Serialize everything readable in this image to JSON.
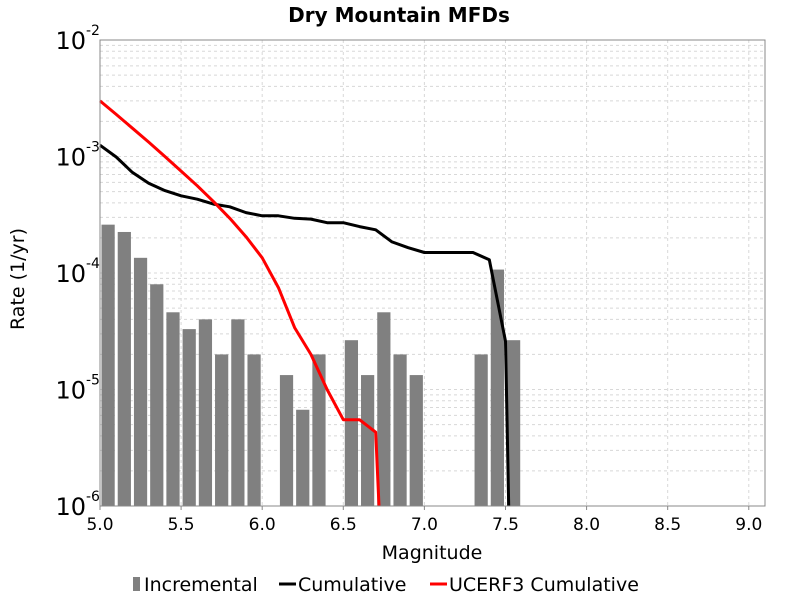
{
  "chart_data": {
    "type": "bar+line",
    "title": "Dry Mountain MFDs",
    "xlabel": "Magnitude",
    "ylabel": "Rate (1/yr)",
    "xlim": [
      5.0,
      9.1
    ],
    "ylim": [
      1e-06,
      0.01
    ],
    "yscale": "log",
    "grid": true,
    "legend_position": "bottom",
    "x_ticks": [
      "5.0",
      "5.5",
      "6.0",
      "6.5",
      "7.0",
      "7.5",
      "8.0",
      "8.5",
      "9.0"
    ],
    "y_ticks": [
      {
        "base": "10",
        "exp": "-2"
      },
      {
        "base": "10",
        "exp": "-3"
      },
      {
        "base": "10",
        "exp": "-4"
      },
      {
        "base": "10",
        "exp": "-5"
      },
      {
        "base": "10",
        "exp": "-6"
      }
    ],
    "series": [
      {
        "name": "Incremental",
        "type": "bar",
        "color": "#808080",
        "x": [
          5.05,
          5.15,
          5.25,
          5.35,
          5.45,
          5.55,
          5.65,
          5.75,
          5.85,
          5.95,
          6.15,
          6.25,
          6.35,
          6.55,
          6.65,
          6.75,
          6.85,
          6.95,
          7.35,
          7.45,
          7.55
        ],
        "y": [
          0.00026,
          0.000225,
          0.000135,
          8e-05,
          4.6e-05,
          3.3e-05,
          4e-05,
          2e-05,
          4e-05,
          2e-05,
          1.33e-05,
          6.7e-06,
          2e-05,
          2.65e-05,
          1.33e-05,
          4.6e-05,
          2e-05,
          1.33e-05,
          2e-05,
          0.000107,
          2.65e-05
        ]
      },
      {
        "name": "Cumulative",
        "type": "line",
        "color": "#000000",
        "x": [
          5.0,
          5.1,
          5.2,
          5.3,
          5.4,
          5.5,
          5.6,
          5.7,
          5.8,
          5.9,
          6.0,
          6.1,
          6.2,
          6.3,
          6.4,
          6.5,
          6.6,
          6.7,
          6.8,
          6.9,
          7.0,
          7.1,
          7.2,
          7.3,
          7.4,
          7.5,
          7.52
        ],
        "y": [
          0.00125,
          0.00099,
          0.00073,
          0.00059,
          0.00051,
          0.00046,
          0.00043,
          0.00039,
          0.00037,
          0.00033,
          0.00031,
          0.00031,
          0.000295,
          0.00029,
          0.00027,
          0.00027,
          0.00025,
          0.000235,
          0.000185,
          0.000165,
          0.00015,
          0.00015,
          0.00015,
          0.00015,
          0.00013,
          2.6e-05,
          1e-06
        ]
      },
      {
        "name": "UCERF3 Cumulative",
        "type": "line",
        "color": "#ff0000",
        "x": [
          5.0,
          5.1,
          5.2,
          5.3,
          5.4,
          5.5,
          5.6,
          5.7,
          5.8,
          5.9,
          6.0,
          6.1,
          6.2,
          6.3,
          6.4,
          6.5,
          6.6,
          6.7,
          6.72
        ],
        "y": [
          0.003,
          0.0023,
          0.00175,
          0.00133,
          0.001,
          0.00075,
          0.00056,
          0.00041,
          0.000295,
          0.000205,
          0.000135,
          7.5e-05,
          3.4e-05,
          2e-05,
          1e-05,
          5.5e-06,
          5.5e-06,
          4.3e-06,
          1e-06
        ]
      }
    ]
  }
}
